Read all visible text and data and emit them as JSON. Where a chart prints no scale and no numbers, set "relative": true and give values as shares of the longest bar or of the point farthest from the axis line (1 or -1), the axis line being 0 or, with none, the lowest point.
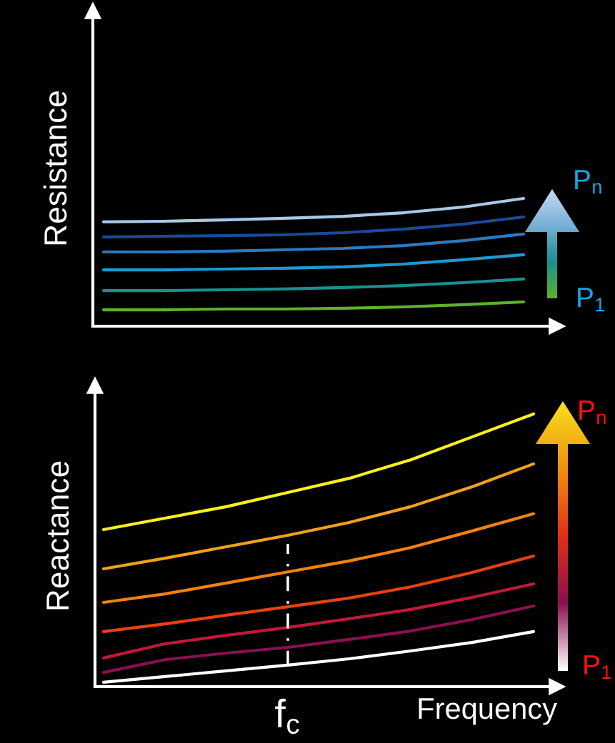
{
  "chart_data": [
    {
      "type": "line",
      "ylabel": "Resistance",
      "relative": true,
      "categories": [
        null,
        null,
        null,
        null,
        null,
        null,
        null,
        null
      ],
      "series": [
        {
          "color": "#5fb030",
          "values": [
            0.128,
            0.128,
            0.134,
            0.134,
            0.14,
            0.151,
            0.168,
            0.19
          ]
        },
        {
          "color": "#1a9090",
          "values": [
            0.279,
            0.279,
            0.285,
            0.291,
            0.302,
            0.318,
            0.341,
            0.369
          ]
        },
        {
          "color": "#1a9ad0",
          "values": [
            0.441,
            0.441,
            0.447,
            0.453,
            0.464,
            0.486,
            0.52,
            0.559
          ]
        },
        {
          "color": "#2a78c0",
          "values": [
            0.581,
            0.581,
            0.587,
            0.598,
            0.609,
            0.631,
            0.67,
            0.721
          ]
        },
        {
          "color": "#1a4a9a",
          "values": [
            0.698,
            0.704,
            0.709,
            0.715,
            0.732,
            0.76,
            0.799,
            0.855
          ]
        },
        {
          "color": "#a8c8e8",
          "values": [
            0.816,
            0.821,
            0.832,
            0.844,
            0.86,
            0.888,
            0.933,
            1
          ]
        }
      ],
      "annotations": [
        "P$_{n}$",
        "P$_{1}$"
      ],
      "grid": false,
      "legend": false
    },
    {
      "type": "line",
      "ylabel": "Reactance",
      "xlabel": "Frequency",
      "relative": true,
      "categories": [
        null,
        null,
        null,
        null,
        null,
        null,
        null,
        null
      ],
      "series": [
        {
          "color": "#ffffff",
          "values": [
            0.016,
            0.037,
            0.058,
            0.079,
            0.102,
            0.131,
            0.162,
            0.202
          ]
        },
        {
          "color": "#8a1050",
          "values": [
            0.052,
            0.099,
            0.123,
            0.144,
            0.173,
            0.204,
            0.246,
            0.296
          ]
        },
        {
          "color": "#c01838",
          "values": [
            0.105,
            0.157,
            0.188,
            0.217,
            0.249,
            0.283,
            0.327,
            0.377
          ]
        },
        {
          "color": "#e84010",
          "values": [
            0.202,
            0.23,
            0.262,
            0.293,
            0.325,
            0.366,
            0.419,
            0.479
          ]
        },
        {
          "color": "#f08010",
          "values": [
            0.309,
            0.34,
            0.38,
            0.421,
            0.461,
            0.51,
            0.571,
            0.634
          ]
        },
        {
          "color": "#f0a020",
          "values": [
            0.432,
            0.471,
            0.513,
            0.555,
            0.602,
            0.66,
            0.733,
            0.817
          ]
        },
        {
          "color": "#f8f020",
          "values": [
            0.576,
            0.618,
            0.66,
            0.712,
            0.764,
            0.832,
            0.916,
            1
          ]
        }
      ],
      "annotations": [
        "P$_{n}$",
        "P$_{1}$",
        "f$_{c}$"
      ],
      "grid": false,
      "legend": false
    }
  ]
}
